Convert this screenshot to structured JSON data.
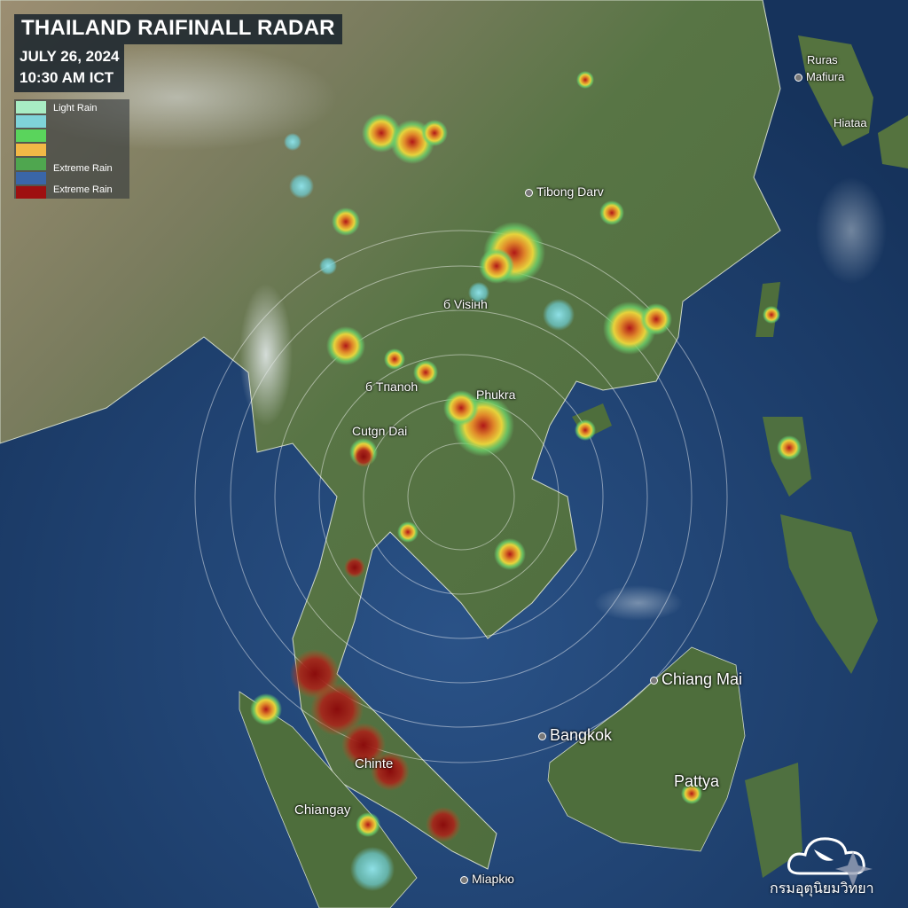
{
  "header": {
    "title": "THAILAND RAIFINALL RADAR",
    "date": "JULY 26, 2024",
    "time": "10:30 AM ICT"
  },
  "legend": {
    "items": [
      {
        "label": "Light Rain",
        "color": "#a8ecc4"
      },
      {
        "label": "",
        "color": "#7fd3d9"
      },
      {
        "label": "",
        "color": "#5ad45c"
      },
      {
        "label": "",
        "color": "#f2b846"
      },
      {
        "label": "Extreme Rain",
        "color": "#4fa64f"
      },
      {
        "label": "",
        "color": "#3a66a8"
      },
      {
        "label": "Extreme Rain",
        "color": "#9e1010"
      }
    ]
  },
  "places": {
    "rurag": "Ruras",
    "mafiura": "Mafiura",
    "hiataa": "Hiataa",
    "tibong": "Tibong Darv",
    "visinh": "б Visінh",
    "tranoh": "б Tпanoh",
    "phukra": "Phukra",
    "cutgn": "Cutgn Dai",
    "chiang_mai": "Chiang Mai",
    "bangkok": "Bangkok",
    "pattya": "Pattya",
    "chinte": "Chinte",
    "chiangay": "Chiangay",
    "miapkio": "Miapkю"
  },
  "logo": {
    "text": "กรมอุตุนิยมวิทยา",
    "icon": "cloud-radar-icon"
  },
  "colors": {
    "ocean": "#1d3f6e",
    "land": "#4f6e3c",
    "desert": "#9c8e72",
    "heavy_rain": "#9e1010"
  }
}
